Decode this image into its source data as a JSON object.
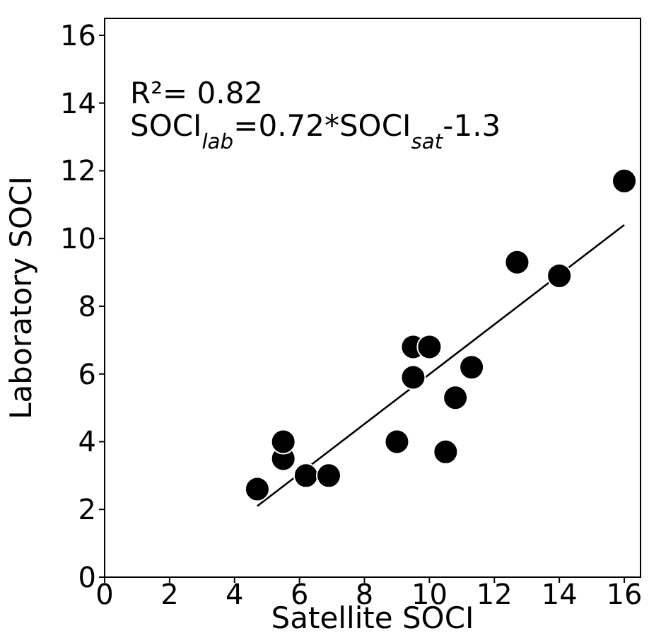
{
  "chart_data": {
    "type": "scatter",
    "xlabel": "Satellite SOCI",
    "ylabel": "Laboratory SOCI",
    "xlim": [
      0,
      16.5
    ],
    "ylim": [
      0,
      16.5
    ],
    "xticks": [
      0,
      2,
      4,
      6,
      8,
      10,
      12,
      14,
      16
    ],
    "yticks": [
      0,
      2,
      4,
      6,
      8,
      10,
      12,
      14,
      16
    ],
    "annotations": [
      "R²= 0.82",
      "SOCI$_{lab}$=0.72*SOCI$_{sat}$-1.3"
    ],
    "series": [
      {
        "color": "#000000",
        "marker": "circle",
        "x": [
          4.7,
          5.5,
          5.5,
          6.2,
          6.9,
          9.0,
          9.5,
          9.5,
          10.0,
          10.5,
          10.8,
          11.3,
          12.7,
          14.0,
          16.0
        ],
        "values": [
          2.6,
          3.5,
          4.0,
          3.0,
          3.0,
          4.0,
          5.9,
          6.8,
          6.8,
          3.7,
          5.3,
          6.2,
          9.3,
          8.9,
          11.7
        ]
      },
      {
        "type": "line",
        "marker": "none",
        "color": "#000000",
        "x": [
          4.7,
          16.0
        ],
        "values": [
          2.1,
          10.4
        ]
      }
    ]
  }
}
